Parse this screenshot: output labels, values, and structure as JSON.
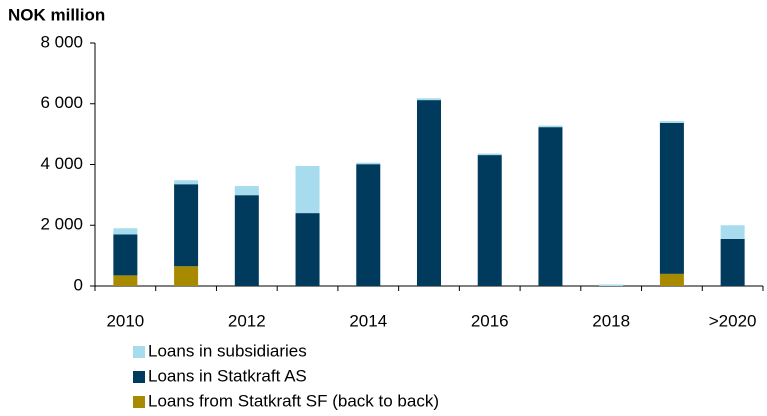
{
  "chart_data": {
    "type": "stacked-bar",
    "title": "NOK million",
    "categories": [
      "2010",
      null,
      "2012",
      null,
      "2014",
      null,
      "2016",
      null,
      "2018",
      null,
      ">2020"
    ],
    "series": [
      {
        "name": "Loans from Statkraft SF (back to back)",
        "color": "#a88a00",
        "values": [
          350,
          650,
          0,
          0,
          0,
          0,
          0,
          0,
          0,
          400,
          0
        ]
      },
      {
        "name": "Loans in Statkraft AS",
        "color": "#003a5d",
        "values": [
          1350,
          2700,
          2990,
          2400,
          4010,
          6120,
          4310,
          5230,
          0,
          4970,
          1550
        ]
      },
      {
        "name": "Loans in subsidiaries",
        "color": "#a6dcee",
        "values": [
          200,
          130,
          300,
          1550,
          50,
          60,
          50,
          50,
          50,
          60,
          450
        ]
      }
    ],
    "ylim": [
      0,
      8000
    ],
    "yticks": [
      0,
      {
        "value": 2000,
        "label": "2 000"
      },
      {
        "value": 4000,
        "label": "4 000"
      },
      {
        "value": 6000,
        "label": "6 000"
      },
      {
        "value": 8000,
        "label": "8 000"
      }
    ]
  }
}
